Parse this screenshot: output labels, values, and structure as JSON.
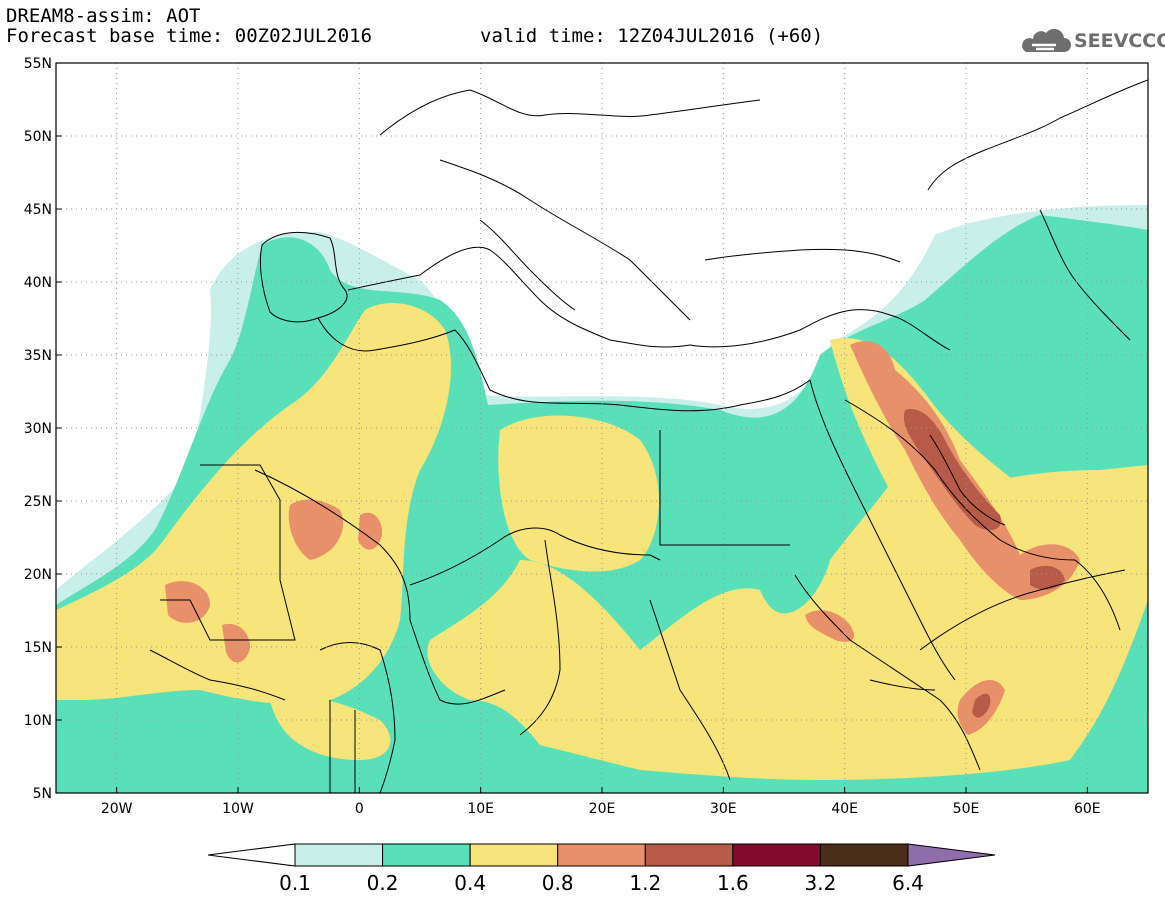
{
  "header": {
    "line1": "DREAM8-assim: AOT",
    "base_time": "Forecast base time: 00Z02JUL2016",
    "valid_time": "valid time: 12Z04JUL2016 (+60)"
  },
  "logo": {
    "icon": "cloud-icon",
    "text": "SEEVCCC"
  },
  "map": {
    "lat_labels": [
      "55N",
      "50N",
      "45N",
      "40N",
      "35N",
      "30N",
      "25N",
      "20N",
      "15N",
      "10N",
      "5N"
    ],
    "lon_labels": [
      "20W",
      "10W",
      "0",
      "10E",
      "20E",
      "30E",
      "40E",
      "50E",
      "60E"
    ],
    "lat_values": [
      55,
      50,
      45,
      40,
      35,
      30,
      25,
      20,
      15,
      10,
      5
    ],
    "lon_values": [
      -20,
      -10,
      0,
      10,
      20,
      30,
      40,
      50,
      60
    ],
    "lon_range": [
      -25,
      65
    ],
    "lat_range": [
      5,
      55
    ],
    "grid": "dotted"
  },
  "colorbar": {
    "labels": [
      "0.1",
      "0.2",
      "0.4",
      "0.8",
      "1.2",
      "1.6",
      "3.2",
      "6.4"
    ],
    "colors": [
      "#ffffff",
      "#c8efe8",
      "#59e0b8",
      "#f7e47a",
      "#e8906a",
      "#b75a48",
      "#820a2a",
      "#4a2c1a",
      "#8f6dab"
    ]
  },
  "palette": {
    "none": "#ffffff",
    "c1": "#c8efe8",
    "c2": "#59e0b8",
    "c3": "#f7e47a",
    "c4": "#e8906a",
    "c5": "#b75a48"
  }
}
